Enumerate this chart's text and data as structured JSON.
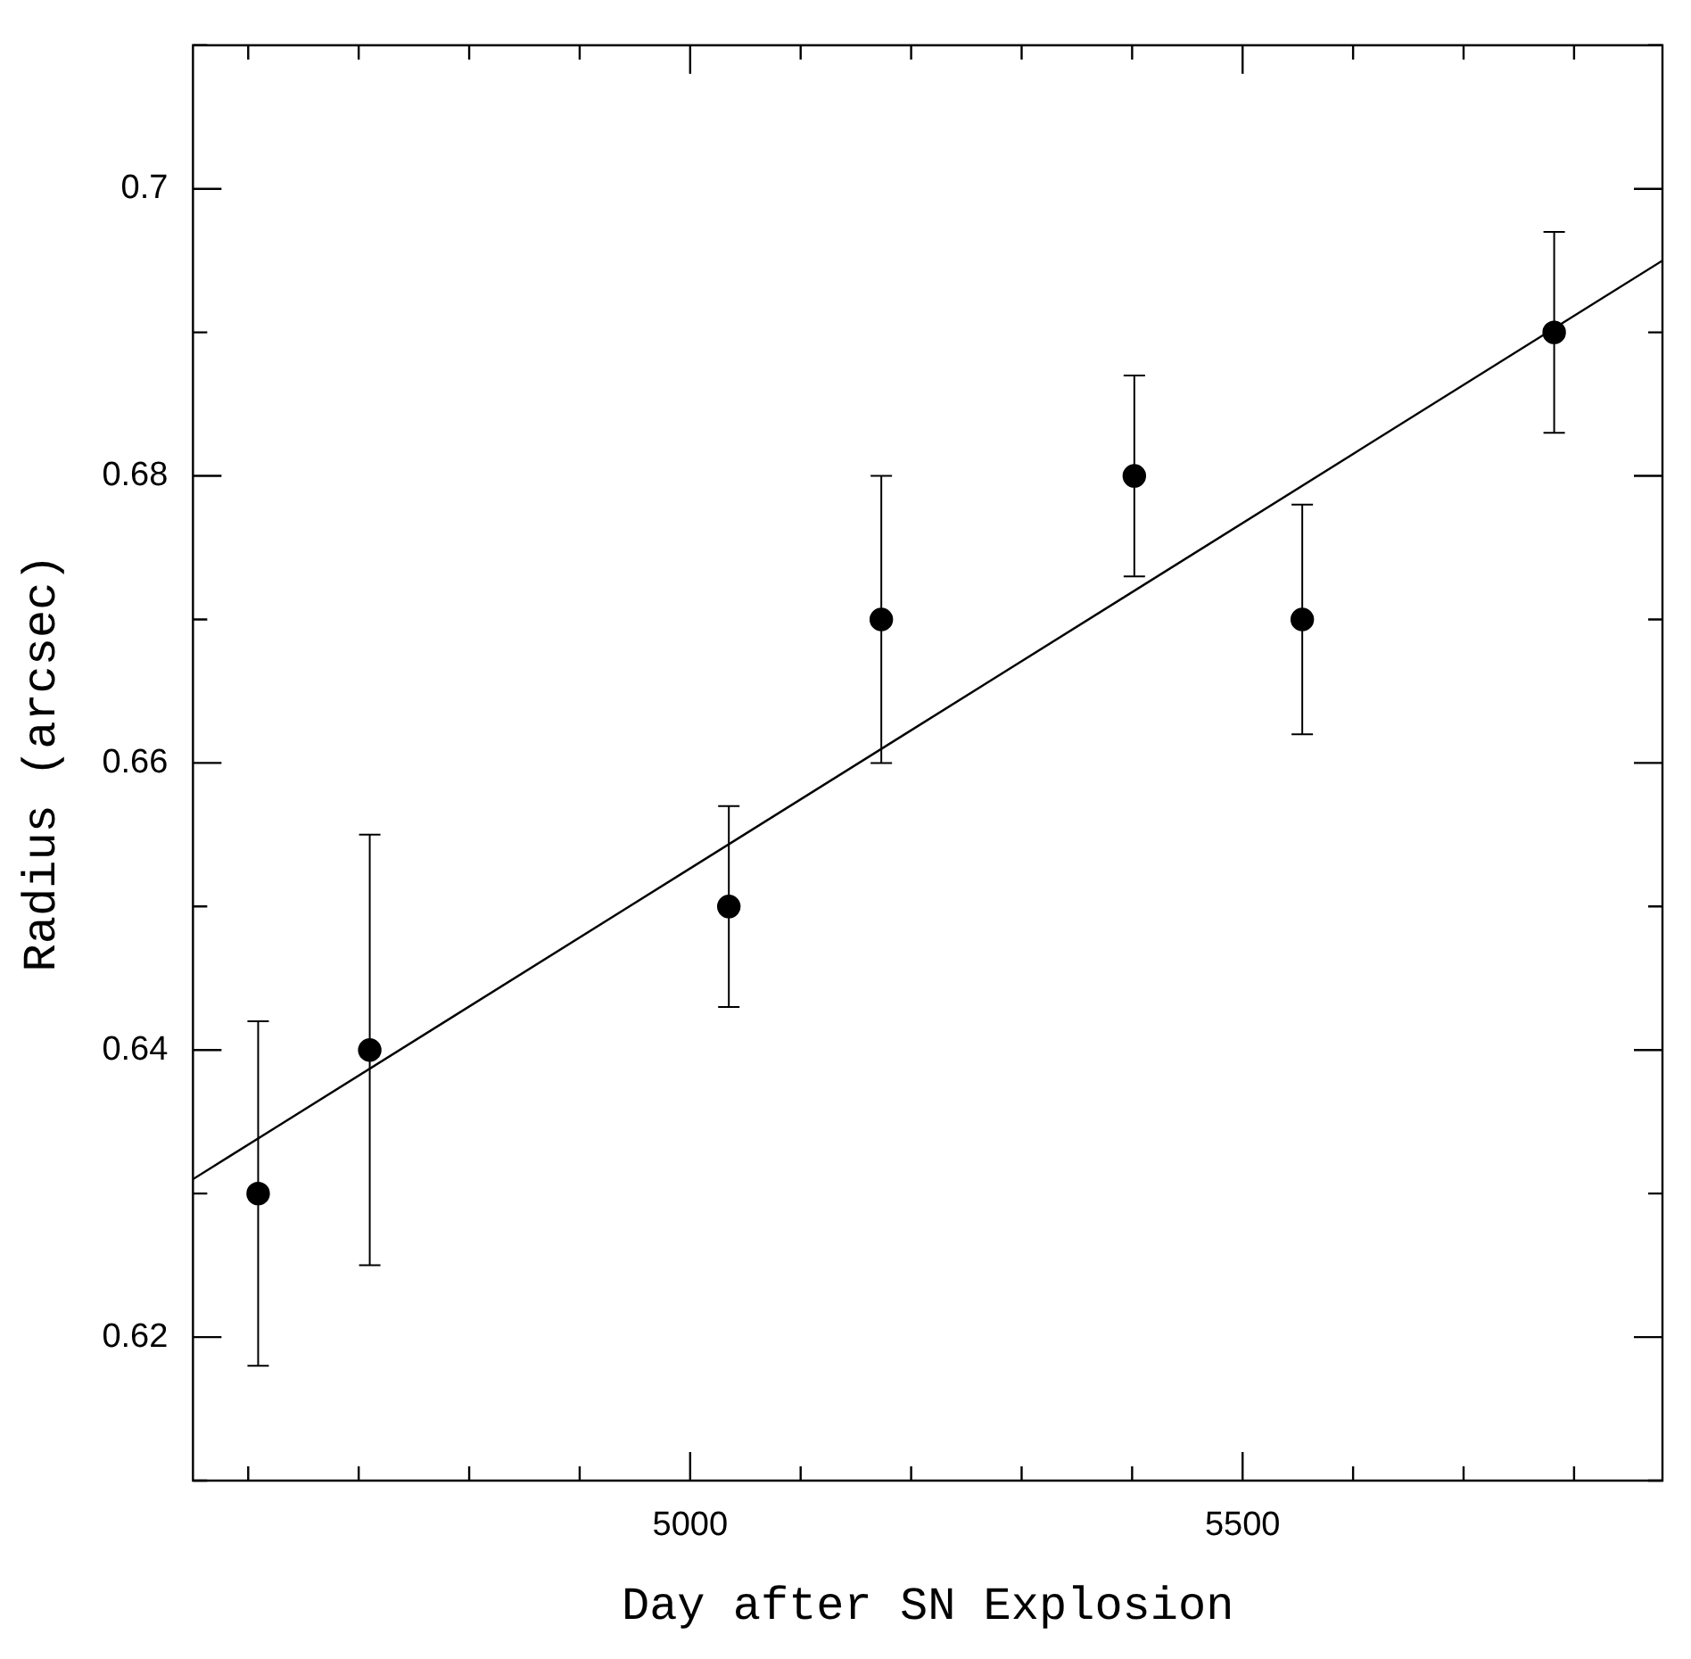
{
  "chart_data": {
    "type": "scatter",
    "xlabel": "Day after SN Explosion",
    "ylabel": "Radius (arcsec)",
    "xlim": [
      4550,
      5880
    ],
    "ylim": [
      0.61,
      0.71
    ],
    "xticks": [
      {
        "value": 4600,
        "label": null
      },
      {
        "value": 4700,
        "label": null
      },
      {
        "value": 4800,
        "label": null
      },
      {
        "value": 4900,
        "label": null
      },
      5000,
      {
        "value": 5100,
        "label": null
      },
      {
        "value": 5200,
        "label": null
      },
      {
        "value": 5300,
        "label": null
      },
      {
        "value": 5400,
        "label": null
      },
      5500,
      {
        "value": 5600,
        "label": null
      },
      {
        "value": 5700,
        "label": null
      },
      {
        "value": 5800,
        "label": null
      }
    ],
    "yticks": [
      {
        "value": 0.61,
        "label": null
      },
      0.62,
      {
        "value": 0.63,
        "label": null
      },
      0.64,
      {
        "value": 0.65,
        "label": null
      },
      0.66,
      {
        "value": 0.67,
        "label": null
      },
      0.68,
      {
        "value": 0.69,
        "label": null
      },
      0.7,
      {
        "value": 0.71,
        "label": null
      }
    ],
    "grid": false,
    "legend": false,
    "marker": "circle",
    "series": [
      {
        "type": "scatter",
        "color": "#000000",
        "x": [
          4609,
          4710,
          5035,
          5173,
          5402,
          5554,
          5782
        ],
        "values": [
          0.63,
          0.64,
          0.65,
          0.67,
          0.68,
          0.67,
          0.69
        ],
        "errors": [
          0.012,
          0.015,
          0.007,
          0.01,
          0.007,
          0.008,
          0.007
        ]
      },
      {
        "type": "line",
        "color": "#000000",
        "marker": "none",
        "line_style": "solid",
        "x": [
          4550,
          5880
        ],
        "values": [
          0.631,
          0.695
        ]
      }
    ]
  }
}
